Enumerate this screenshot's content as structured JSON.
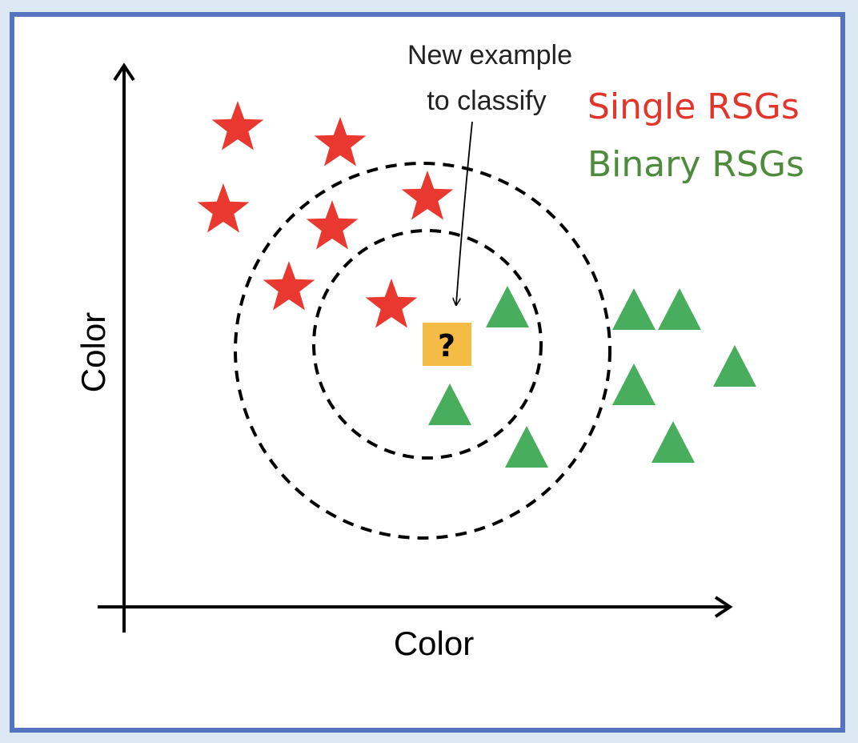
{
  "annotation": {
    "line1": "New example",
    "line2": "to classify"
  },
  "query": {
    "symbol": "?",
    "color": "#f4bc45"
  },
  "legend": [
    {
      "label": "Single RSGs",
      "color": "#e2362d"
    },
    {
      "label": "Binary RSGs",
      "color": "#4f8b3c"
    }
  ],
  "axes": {
    "x_label": "Color",
    "y_label": "Color"
  },
  "marker_colors": {
    "star": "#e8382f",
    "triangle": "#48ad5c"
  },
  "icons": {
    "star": "star-icon",
    "triangle": "triangle-icon",
    "query": "question-mark-icon"
  }
}
